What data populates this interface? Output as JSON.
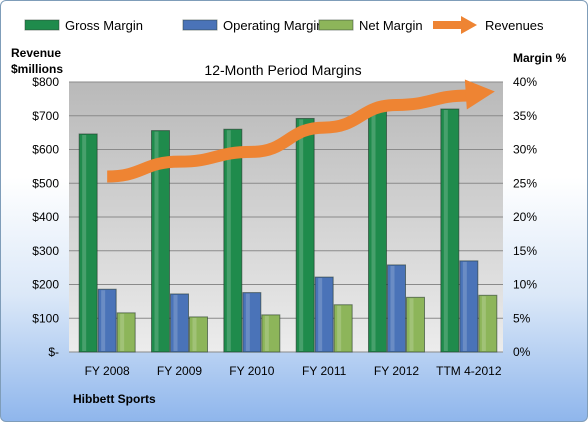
{
  "chart_data": {
    "type": "bar",
    "title": "12-Month Period Margins",
    "company": "Hibbett Sports",
    "categories": [
      "FY 2008",
      "FY 2009",
      "FY 2010",
      "FY 2011",
      "FY 2012",
      "TTM 4-2012"
    ],
    "left_axis": {
      "label_line1": "Revenue",
      "label_line2": "$millions",
      "ylim": [
        0,
        800
      ],
      "ticks": [
        0,
        100,
        200,
        300,
        400,
        500,
        600,
        700,
        800
      ],
      "tick_labels": [
        "$-",
        "$100",
        "$200",
        "$300",
        "$400",
        "$500",
        "$600",
        "$700",
        "$800"
      ]
    },
    "right_axis": {
      "label": "Margin %",
      "ylim": [
        0,
        40
      ],
      "ticks": [
        0,
        5,
        10,
        15,
        20,
        25,
        30,
        35,
        40
      ],
      "tick_labels": [
        "0%",
        "5%",
        "10%",
        "15%",
        "20%",
        "25%",
        "30%",
        "35%",
        "40%"
      ]
    },
    "grid": true,
    "legend_position": "top",
    "series": [
      {
        "name": "Gross Margin",
        "kind": "bar",
        "axis": "right",
        "color": "#1f8b4c",
        "values": [
          32.3,
          32.8,
          33.0,
          34.6,
          35.8,
          36.0
        ]
      },
      {
        "name": "Operating Margin",
        "kind": "bar",
        "axis": "right",
        "color": "#4a73b8",
        "values": [
          9.3,
          8.6,
          8.8,
          11.1,
          12.9,
          13.5
        ]
      },
      {
        "name": "Net Margin",
        "kind": "bar",
        "axis": "right",
        "color": "#8db55a",
        "values": [
          5.8,
          5.2,
          5.5,
          7.0,
          8.1,
          8.4
        ]
      },
      {
        "name": "Revenues",
        "kind": "line-arrow",
        "axis": "left",
        "color": "#ee8433",
        "values": [
          520,
          564,
          593,
          665,
          732,
          760
        ]
      }
    ]
  }
}
